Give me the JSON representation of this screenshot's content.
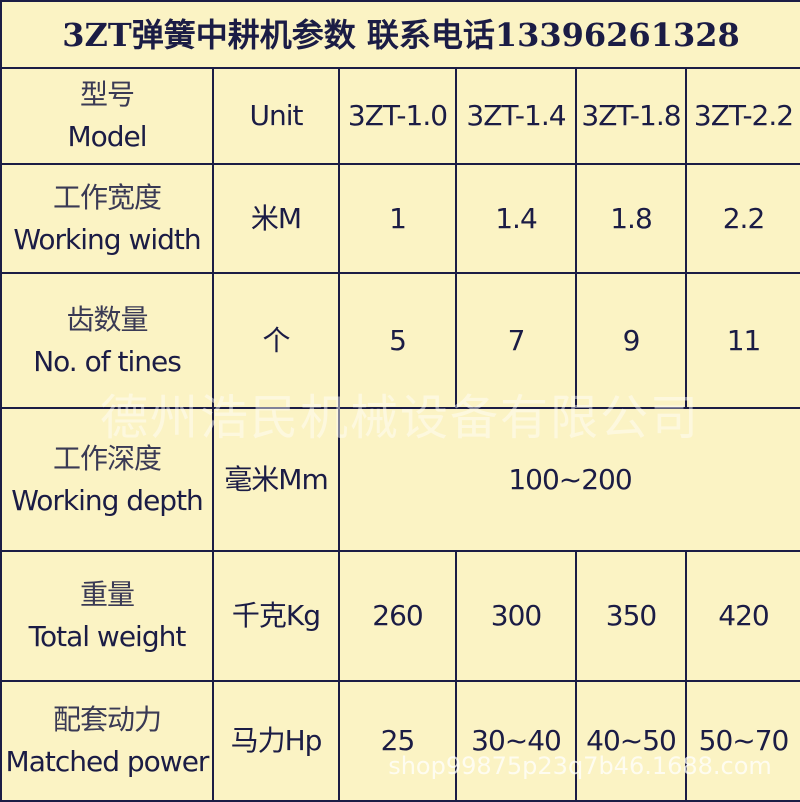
{
  "title": "3ZT弹簧中耕机参数 联系电话13396261328",
  "header": {
    "cn": "型号",
    "en": "Model",
    "unit": "Unit",
    "models": [
      "3ZT-1.0",
      "3ZT-1.4",
      "3ZT-1.8",
      "3ZT-2.2"
    ]
  },
  "rows": [
    {
      "cn": "工作宽度",
      "en": "Working width",
      "unit": "米M",
      "values": [
        "1",
        "1.4",
        "1.8",
        "2.2"
      ]
    },
    {
      "cn": "齿数量",
      "en": "No. of tines",
      "unit": "个",
      "values": [
        "5",
        "7",
        "9",
        "11"
      ]
    },
    {
      "cn": "工作深度",
      "en": "Working depth",
      "unit": "毫米Mm",
      "merged_value": "100~200"
    },
    {
      "cn": "重量",
      "en": "Total weight",
      "unit": "千克Kg",
      "values": [
        "260",
        "300",
        "350",
        "420"
      ]
    },
    {
      "cn": "配套动力",
      "en": "Matched power",
      "unit": "马力Hp",
      "values": [
        "25",
        "30~40",
        "40~50",
        "50~70"
      ]
    }
  ],
  "watermark_company": "德州浩民机械设备有限公司",
  "watermark_url": "shop99875p23q7b46.1688.com",
  "colors": {
    "background": "#fbf3c4",
    "text": "#1b1c45"
  }
}
